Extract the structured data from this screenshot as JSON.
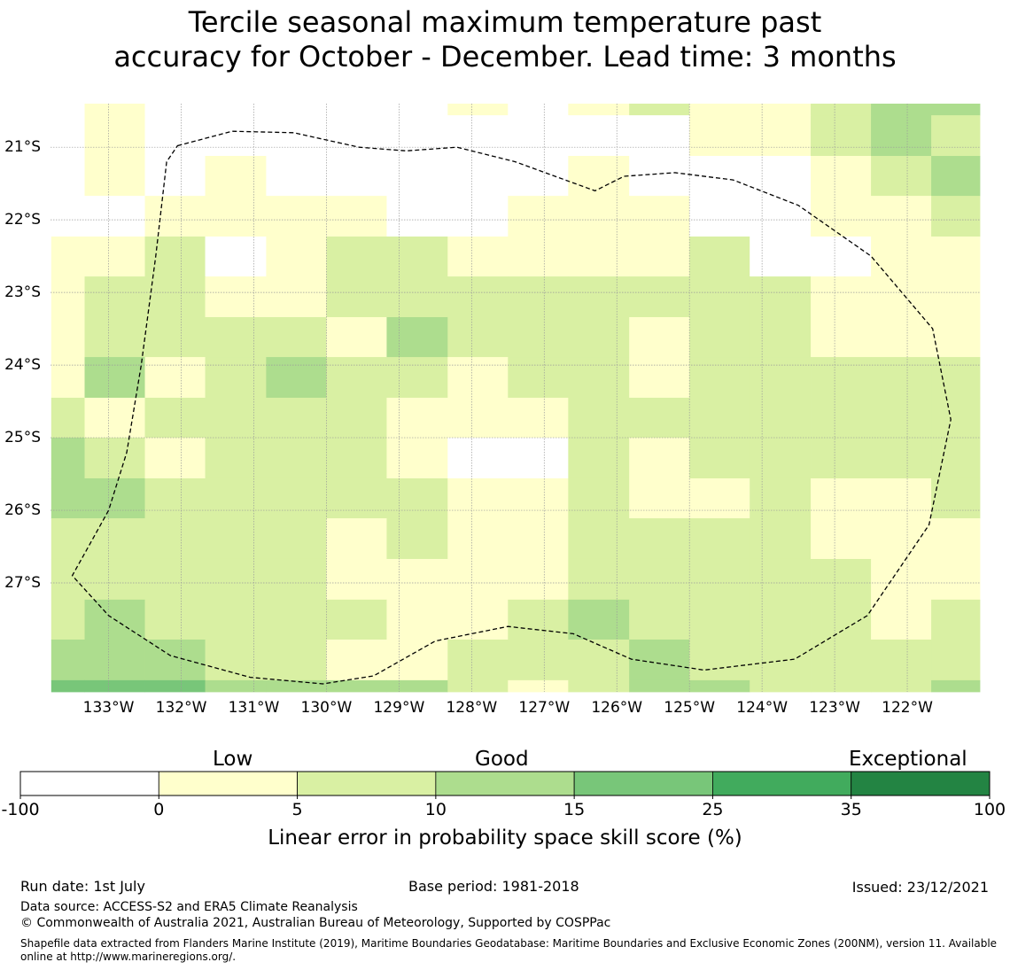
{
  "title_line1": "Tercile seasonal maximum temperature past",
  "title_line2": "accuracy for October - December. Lead time: 3 months",
  "map": {
    "lat_labels": [
      "21°S",
      "22°S",
      "23°S",
      "24°S",
      "25°S",
      "26°S",
      "27°S"
    ],
    "lon_labels": [
      "133°W",
      "132°W",
      "131°W",
      "130°W",
      "129°W",
      "128°W",
      "127°W",
      "126°W",
      "125°W",
      "124°W",
      "123°W",
      "122°W"
    ],
    "lat_values": [
      -21,
      -22,
      -23,
      -24,
      -25,
      -26,
      -27
    ],
    "lon_values": [
      -133,
      -132,
      -131,
      -130,
      -129,
      -128,
      -127,
      -126,
      -125,
      -124,
      -123,
      -122
    ],
    "extent": {
      "lon_min": -133.8,
      "lon_max": -121.0,
      "lat_min": -28.5,
      "lat_max": -20.4
    },
    "grid_lon_edges": [
      -133.79,
      -133.33,
      -132.5,
      -131.67,
      -130.83,
      -130.0,
      -129.17,
      -128.33,
      -127.5,
      -126.67,
      -125.83,
      -125.0,
      -124.17,
      -123.33,
      -122.5,
      -121.67,
      -121.0
    ],
    "grid_lat_edges": [
      -20.4,
      -20.56,
      -21.12,
      -21.67,
      -22.23,
      -22.78,
      -23.34,
      -23.89,
      -24.45,
      -25.0,
      -25.56,
      -26.11,
      -26.67,
      -27.23,
      -27.78,
      -28.34,
      -28.5
    ],
    "skill_grid": [
      [
        -1,
        2.5,
        -1,
        -1,
        -1,
        -1,
        -1,
        2.5,
        -1,
        2.5,
        7.5,
        2.5,
        2.5,
        7.5,
        12.5,
        12.5
      ],
      [
        -1,
        2.5,
        -1,
        -1,
        -1,
        -1,
        -1,
        -1,
        -1,
        -1,
        -1,
        2.5,
        2.5,
        7.5,
        12.5,
        7.5
      ],
      [
        -1,
        2.5,
        -1,
        2.5,
        -1,
        -1,
        -1,
        -1,
        -1,
        2.5,
        -1,
        -1,
        -1,
        2.5,
        7.5,
        12.5
      ],
      [
        -1,
        -1,
        2.5,
        2.5,
        2.5,
        2.5,
        -1,
        -1,
        2.5,
        2.5,
        2.5,
        -1,
        -1,
        2.5,
        2.5,
        7.5
      ],
      [
        2.5,
        2.5,
        7.5,
        -1,
        2.5,
        7.5,
        7.5,
        2.5,
        2.5,
        2.5,
        2.5,
        7.5,
        -1,
        -1,
        2.5,
        2.5
      ],
      [
        2.5,
        7.5,
        7.5,
        2.5,
        2.5,
        7.5,
        7.5,
        7.5,
        7.5,
        7.5,
        7.5,
        7.5,
        7.5,
        2.5,
        2.5,
        2.5
      ],
      [
        2.5,
        7.5,
        7.5,
        7.5,
        7.5,
        2.5,
        12.5,
        7.5,
        7.5,
        7.5,
        2.5,
        7.5,
        7.5,
        2.5,
        2.5,
        2.5
      ],
      [
        2.5,
        12.5,
        2.5,
        7.5,
        12.5,
        7.5,
        7.5,
        2.5,
        7.5,
        7.5,
        2.5,
        7.5,
        7.5,
        7.5,
        7.5,
        7.5
      ],
      [
        7.5,
        2.5,
        7.5,
        7.5,
        7.5,
        7.5,
        2.5,
        2.5,
        2.5,
        7.5,
        7.5,
        7.5,
        7.5,
        7.5,
        7.5,
        7.5
      ],
      [
        12.5,
        7.5,
        2.5,
        7.5,
        7.5,
        7.5,
        2.5,
        -1,
        -1,
        7.5,
        2.5,
        7.5,
        7.5,
        7.5,
        7.5,
        7.5
      ],
      [
        12.5,
        12.5,
        7.5,
        7.5,
        7.5,
        7.5,
        7.5,
        2.5,
        2.5,
        7.5,
        2.5,
        2.5,
        7.5,
        2.5,
        2.5,
        7.5
      ],
      [
        7.5,
        7.5,
        7.5,
        7.5,
        7.5,
        2.5,
        7.5,
        2.5,
        2.5,
        7.5,
        7.5,
        7.5,
        7.5,
        2.5,
        2.5,
        2.5
      ],
      [
        7.5,
        7.5,
        7.5,
        7.5,
        7.5,
        2.5,
        2.5,
        2.5,
        2.5,
        7.5,
        7.5,
        7.5,
        7.5,
        7.5,
        2.5,
        2.5
      ],
      [
        7.5,
        12.5,
        7.5,
        7.5,
        7.5,
        7.5,
        2.5,
        2.5,
        7.5,
        12.5,
        7.5,
        7.5,
        7.5,
        7.5,
        2.5,
        7.5
      ],
      [
        12.5,
        12.5,
        12.5,
        7.5,
        7.5,
        2.5,
        2.5,
        7.5,
        7.5,
        7.5,
        12.5,
        7.5,
        7.5,
        7.5,
        7.5,
        7.5
      ],
      [
        20,
        20,
        20,
        12.5,
        12.5,
        12.5,
        12.5,
        7.5,
        2.5,
        7.5,
        12.5,
        12.5,
        7.5,
        7.5,
        7.5,
        12.5
      ]
    ],
    "eez_outline": [
      [
        -132.05,
        -20.98
      ],
      [
        -131.3,
        -20.78
      ],
      [
        -130.45,
        -20.8
      ],
      [
        -129.55,
        -21.0
      ],
      [
        -128.9,
        -21.05
      ],
      [
        -128.2,
        -21.0
      ],
      [
        -127.4,
        -21.2
      ],
      [
        -126.3,
        -21.6
      ],
      [
        -125.9,
        -21.4
      ],
      [
        -125.2,
        -21.35
      ],
      [
        -124.4,
        -21.45
      ],
      [
        -123.5,
        -21.8
      ],
      [
        -122.5,
        -22.5
      ],
      [
        -121.65,
        -23.5
      ],
      [
        -121.4,
        -24.75
      ],
      [
        -121.7,
        -26.2
      ],
      [
        -122.55,
        -27.45
      ],
      [
        -123.55,
        -28.05
      ],
      [
        -124.8,
        -28.2
      ],
      [
        -125.8,
        -28.05
      ],
      [
        -126.6,
        -27.7
      ],
      [
        -127.5,
        -27.6
      ],
      [
        -128.5,
        -27.8
      ],
      [
        -129.35,
        -28.28
      ],
      [
        -130.05,
        -28.39
      ],
      [
        -131.05,
        -28.3
      ],
      [
        -132.15,
        -28.0
      ],
      [
        -133.0,
        -27.45
      ],
      [
        -133.5,
        -26.9
      ],
      [
        -133.0,
        -26.0
      ],
      [
        -132.75,
        -25.2
      ],
      [
        -132.55,
        -24.0
      ],
      [
        -132.35,
        -22.5
      ],
      [
        -132.2,
        -21.2
      ],
      [
        -132.05,
        -20.98
      ]
    ]
  },
  "colorbar": {
    "category_labels": [
      "Low",
      "Good",
      "Exceptional"
    ],
    "tick_labels": [
      "-100",
      "0",
      "5",
      "10",
      "15",
      "25",
      "35",
      "100"
    ],
    "bounds": [
      -100,
      0,
      5,
      10,
      15,
      25,
      35,
      100
    ],
    "colors": [
      "#ffffff",
      "#ffffcc",
      "#d9f0a3",
      "#addd8e",
      "#78c679",
      "#41ab5d",
      "#238443"
    ],
    "label": "Linear error in probability space skill score (%)"
  },
  "footer": {
    "run_date": "Run date: 1st July",
    "base_period": "Base period: 1981-2018",
    "issued": "Issued: 23/12/2021",
    "data_source": "Data source: ACCESS-S2 and ERA5 Climate Reanalysis",
    "copyright": "© Commonwealth of Australia 2021, Australian Bureau of Meteorology, Supported by COSPPac",
    "shapefile_note": "Shapefile data extracted from Flanders Marine Institute (2019), Maritime Boundaries Geodatabase: Maritime Boundaries and Exclusive Economic Zones (200NM), version 11. Available online at http://www.marineregions.org/."
  }
}
